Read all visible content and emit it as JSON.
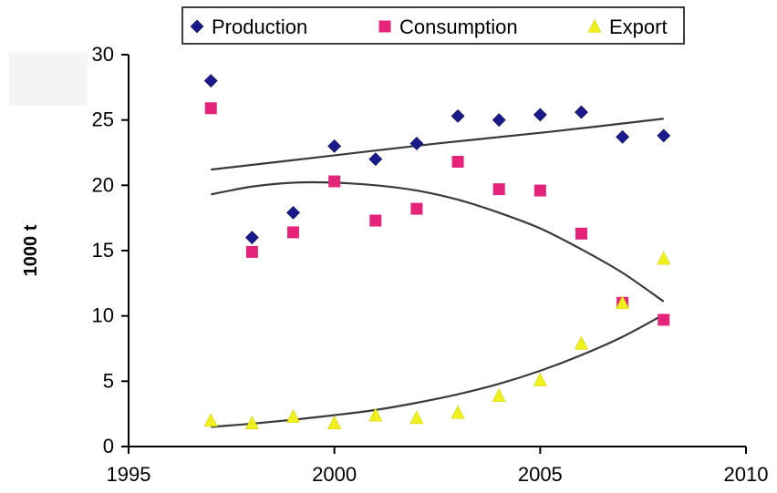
{
  "chart_data": {
    "type": "scatter",
    "title": "",
    "xlabel": "",
    "ylabel": "1000 t",
    "xlim": [
      1995,
      2010
    ],
    "ylim": [
      0,
      30
    ],
    "x_ticks": [
      1995,
      2000,
      2005,
      2010
    ],
    "y_ticks": [
      0,
      5,
      10,
      15,
      20,
      25,
      30
    ],
    "grid": false,
    "legend_position": "top",
    "series": [
      {
        "name": "Production",
        "marker": "diamond",
        "color": "#1a1a8c",
        "points": [
          [
            1997,
            28.0
          ],
          [
            1998,
            16.0
          ],
          [
            1999,
            17.9
          ],
          [
            2000,
            23.0
          ],
          [
            2001,
            22.0
          ],
          [
            2002,
            23.2
          ],
          [
            2003,
            25.3
          ],
          [
            2004,
            25.0
          ],
          [
            2005,
            25.4
          ],
          [
            2006,
            25.6
          ],
          [
            2007,
            23.7
          ],
          [
            2008,
            23.8
          ]
        ],
        "trend": [
          [
            1997,
            21.2
          ],
          [
            1999.75,
            22.2
          ],
          [
            2002.5,
            23.2
          ],
          [
            2005.25,
            24.1
          ],
          [
            2008,
            25.1
          ]
        ]
      },
      {
        "name": "Consumption",
        "marker": "square",
        "color": "#e6237a",
        "points": [
          [
            1997,
            25.9
          ],
          [
            1998,
            14.9
          ],
          [
            1999,
            16.4
          ],
          [
            2000,
            20.3
          ],
          [
            2001,
            17.3
          ],
          [
            2002,
            18.2
          ],
          [
            2003,
            21.8
          ],
          [
            2004,
            19.7
          ],
          [
            2005,
            19.6
          ],
          [
            2006,
            16.3
          ],
          [
            2007,
            11.0
          ],
          [
            2008,
            9.7
          ]
        ],
        "trend": [
          [
            1997,
            19.3
          ],
          [
            1998,
            19.9
          ],
          [
            1999,
            20.2
          ],
          [
            2000,
            20.2
          ],
          [
            2001,
            20.0
          ],
          [
            2002,
            19.6
          ],
          [
            2003,
            18.9
          ],
          [
            2004,
            17.9
          ],
          [
            2005,
            16.7
          ],
          [
            2006,
            15.1
          ],
          [
            2007,
            13.3
          ],
          [
            2008,
            11.1
          ]
        ]
      },
      {
        "name": "Export",
        "marker": "triangle",
        "color": "#f0f01e",
        "points": [
          [
            1997,
            2.0
          ],
          [
            1998,
            1.8
          ],
          [
            1999,
            2.3
          ],
          [
            2000,
            1.8
          ],
          [
            2001,
            2.4
          ],
          [
            2002,
            2.2
          ],
          [
            2003,
            2.6
          ],
          [
            2004,
            3.9
          ],
          [
            2005,
            5.1
          ],
          [
            2006,
            7.9
          ],
          [
            2007,
            11.0
          ],
          [
            2008,
            14.4
          ]
        ],
        "trend": [
          [
            1997,
            1.5
          ],
          [
            1998,
            1.75
          ],
          [
            1999,
            2.05
          ],
          [
            2000,
            2.4
          ],
          [
            2001,
            2.8
          ],
          [
            2002,
            3.35
          ],
          [
            2003,
            4.0
          ],
          [
            2004,
            4.8
          ],
          [
            2005,
            5.8
          ],
          [
            2006,
            7.0
          ],
          [
            2007,
            8.4
          ],
          [
            2008,
            10.1
          ]
        ]
      }
    ]
  }
}
